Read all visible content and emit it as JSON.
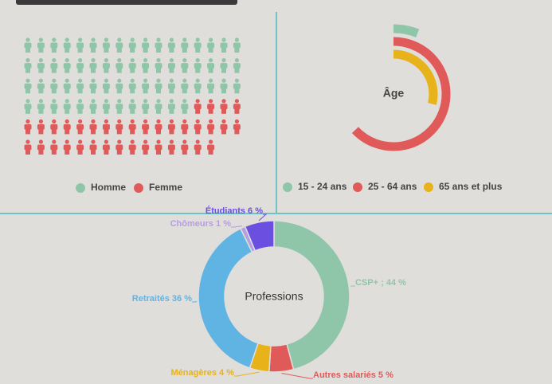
{
  "chart_data": [
    {
      "type": "pictogram",
      "categories": [
        "Homme",
        "Femme"
      ],
      "values": [
        64,
        36
      ],
      "colors": [
        "#8fc5a8",
        "#e05a5a"
      ],
      "legend": true
    },
    {
      "type": "radial_bar",
      "title": "Âge",
      "categories": [
        "15 - 24 ans",
        "25 - 64 ans",
        "65 ans et plus"
      ],
      "values": [
        6,
        63,
        29
      ],
      "colors": [
        "#8fc5a8",
        "#e05a5a",
        "#e8b21a"
      ],
      "ylim": [
        0,
        100
      ],
      "legend": true
    },
    {
      "type": "donut",
      "title": "Professions",
      "labels": [
        "CSP+ ; 44 %",
        "Autres salariés 5 %",
        "Ménagères 4 %",
        "Retraités 36 %",
        "Chômeurs 1 %",
        "Étudiants 6 %"
      ],
      "values": [
        44,
        5,
        4,
        36,
        1,
        6
      ],
      "colors": [
        "#8fc5a8",
        "#e05a5a",
        "#e8b21a",
        "#5fb4e3",
        "#b59ee0",
        "#6a4fe0"
      ]
    }
  ]
}
